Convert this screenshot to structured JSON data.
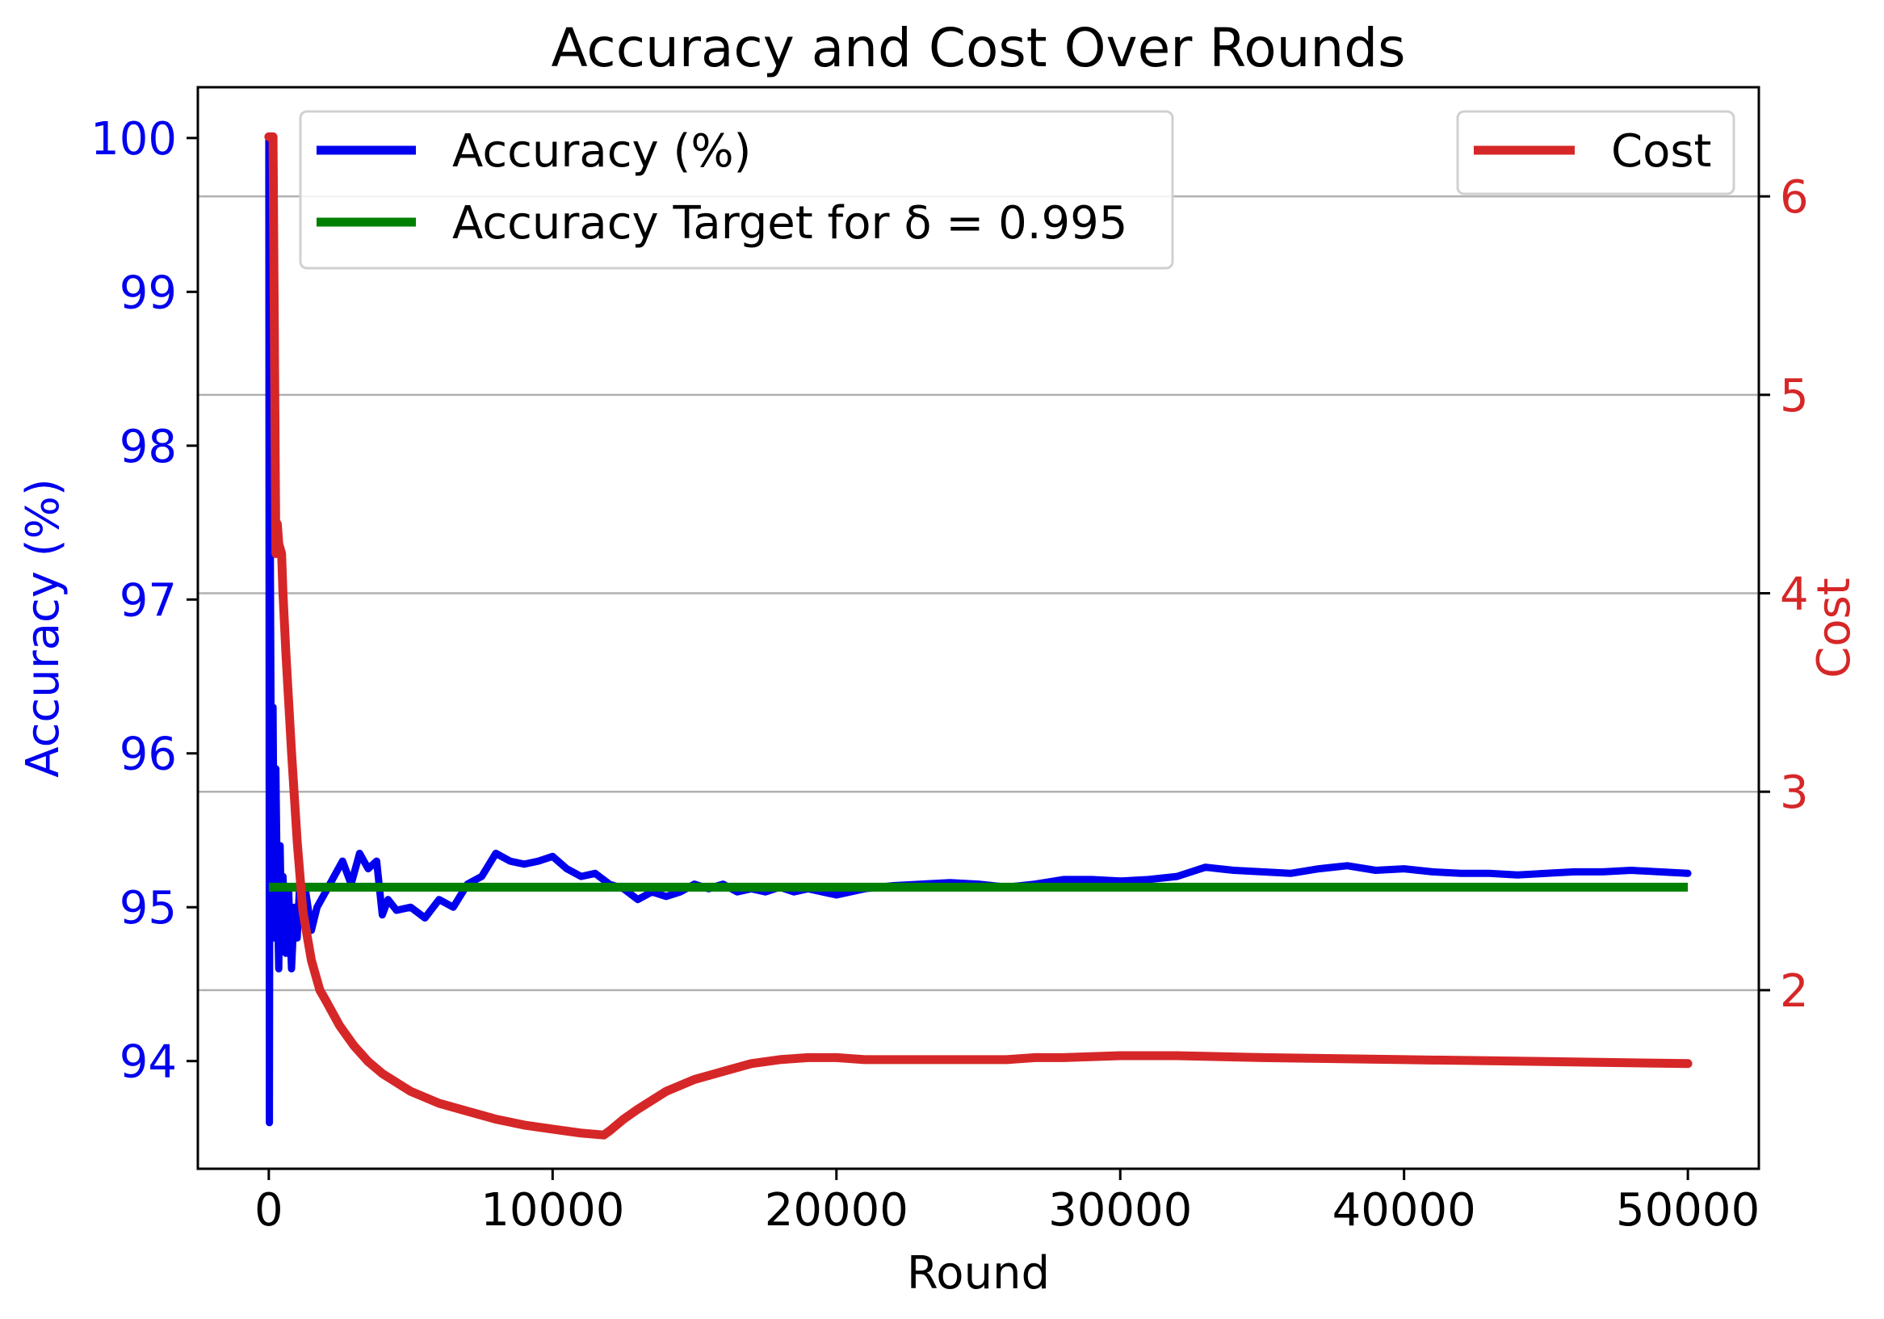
{
  "chart_data": {
    "type": "line",
    "title": "Accuracy and Cost Over Rounds",
    "xlabel": "Round",
    "ylabel_left": "Accuracy (%)",
    "ylabel_right": "Cost",
    "xlim": [
      -2500,
      52500
    ],
    "ylim_left": [
      93.3,
      100.33
    ],
    "ylim_right": [
      1.1,
      6.55
    ],
    "x_ticks": [
      0,
      10000,
      20000,
      30000,
      40000,
      50000
    ],
    "y_left_ticks": [
      94,
      95,
      96,
      97,
      98,
      99,
      100
    ],
    "y_right_ticks": [
      2,
      3,
      4,
      5,
      6
    ],
    "grid": "horizontal lines at right-axis ticks",
    "legend_left_placement": "top-left",
    "legend_right_placement": "top-right",
    "colors": {
      "accuracy": "#0000ee",
      "target": "#008000",
      "cost": "#d62728",
      "grid": "#b0b0b0",
      "axis": "#000000"
    },
    "series": [
      {
        "name": "Accuracy (%)",
        "axis": "left",
        "color": "#0000ee",
        "x": [
          0,
          20,
          50,
          100,
          150,
          200,
          250,
          300,
          350,
          400,
          450,
          500,
          600,
          700,
          800,
          900,
          1000,
          1100,
          1200,
          1300,
          1500,
          1700,
          2000,
          2300,
          2600,
          2900,
          3200,
          3500,
          3800,
          4000,
          4200,
          4500,
          5000,
          5500,
          6000,
          6500,
          7000,
          7500,
          8000,
          8500,
          9000,
          9500,
          10000,
          10500,
          11000,
          11500,
          12000,
          12500,
          13000,
          13500,
          14000,
          14500,
          15000,
          15500,
          16000,
          16500,
          17000,
          17500,
          18000,
          18500,
          19000,
          19500,
          20000,
          21000,
          22000,
          23000,
          24000,
          25000,
          26000,
          27000,
          28000,
          29000,
          30000,
          31000,
          32000,
          33000,
          33500,
          34000,
          35000,
          36000,
          37000,
          38000,
          39000,
          40000,
          41000,
          42000,
          43000,
          44000,
          45000,
          46000,
          47000,
          48000,
          49000,
          50000
        ],
        "y": [
          100.0,
          93.6,
          97.5,
          95.2,
          96.3,
          94.8,
          95.9,
          95.1,
          94.6,
          95.4,
          94.8,
          95.2,
          94.7,
          95.1,
          94.6,
          95.0,
          94.8,
          95.2,
          94.9,
          95.1,
          94.85,
          95.0,
          95.1,
          95.2,
          95.3,
          95.15,
          95.35,
          95.25,
          95.3,
          94.95,
          95.05,
          94.98,
          95.0,
          94.93,
          95.05,
          95.0,
          95.15,
          95.2,
          95.35,
          95.3,
          95.28,
          95.3,
          95.33,
          95.25,
          95.2,
          95.22,
          95.15,
          95.12,
          95.05,
          95.1,
          95.07,
          95.1,
          95.15,
          95.12,
          95.15,
          95.1,
          95.12,
          95.1,
          95.13,
          95.1,
          95.12,
          95.1,
          95.08,
          95.12,
          95.14,
          95.15,
          95.16,
          95.15,
          95.13,
          95.15,
          95.18,
          95.18,
          95.17,
          95.18,
          95.2,
          95.26,
          95.25,
          95.24,
          95.23,
          95.22,
          95.25,
          95.27,
          95.24,
          95.25,
          95.23,
          95.22,
          95.22,
          95.21,
          95.22,
          95.23,
          95.23,
          95.24,
          95.23,
          95.22
        ]
      },
      {
        "name": "Accuracy Target for δ = 0.995",
        "axis": "left",
        "color": "#008000",
        "x": [
          0,
          50000
        ],
        "y": [
          95.13,
          95.13
        ]
      },
      {
        "name": "Cost",
        "axis": "right",
        "color": "#d62728",
        "x": [
          0,
          150,
          250,
          300,
          350,
          450,
          500,
          600,
          800,
          1000,
          1200,
          1500,
          1800,
          2000,
          2500,
          3000,
          3500,
          4000,
          5000,
          6000,
          7000,
          8000,
          9000,
          10000,
          11000,
          11800,
          12000,
          12500,
          13000,
          14000,
          15000,
          16000,
          17000,
          18000,
          19000,
          20000,
          21000,
          22000,
          23000,
          24000,
          25000,
          26000,
          27000,
          28000,
          30000,
          32000,
          35000,
          40000,
          45000,
          50000
        ],
        "y": [
          6.3,
          6.3,
          4.2,
          4.35,
          4.25,
          4.2,
          4.0,
          3.7,
          3.2,
          2.75,
          2.4,
          2.15,
          2.0,
          1.95,
          1.82,
          1.72,
          1.64,
          1.58,
          1.49,
          1.43,
          1.39,
          1.35,
          1.32,
          1.3,
          1.28,
          1.27,
          1.29,
          1.35,
          1.4,
          1.49,
          1.55,
          1.59,
          1.63,
          1.65,
          1.66,
          1.66,
          1.65,
          1.65,
          1.65,
          1.65,
          1.65,
          1.65,
          1.66,
          1.66,
          1.67,
          1.67,
          1.66,
          1.65,
          1.64,
          1.63
        ]
      }
    ]
  }
}
